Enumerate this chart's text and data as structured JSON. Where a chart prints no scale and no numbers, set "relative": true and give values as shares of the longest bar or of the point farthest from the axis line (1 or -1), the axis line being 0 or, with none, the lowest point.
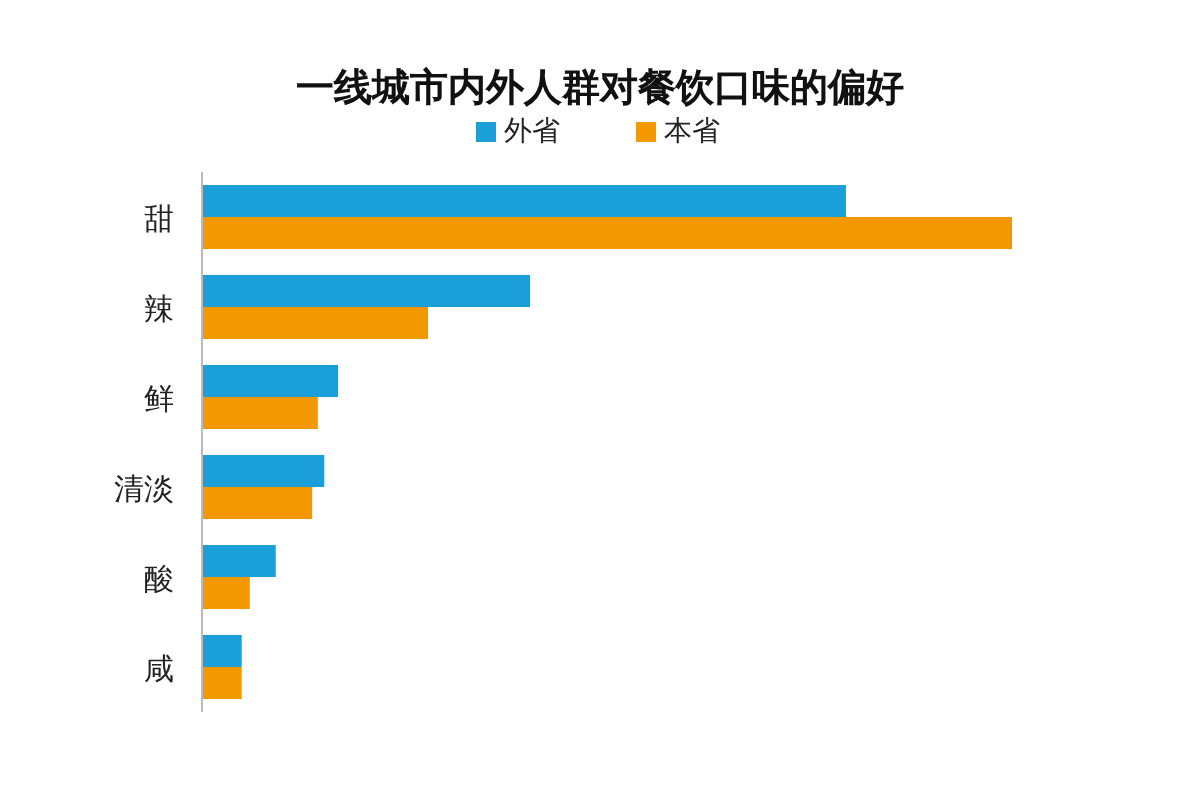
{
  "chart_data": {
    "type": "bar",
    "orientation": "horizontal",
    "relative": true,
    "title": "一线城市内外人群对餐饮口味的偏好",
    "legend": "top",
    "categories": [
      "甜",
      "辣",
      "鲜",
      "清淡",
      "酸",
      "咸"
    ],
    "series": [
      {
        "name": "外省",
        "color": "#1a9fd8",
        "values": [
          0.795,
          0.405,
          0.168,
          0.151,
          0.091,
          0.049
        ]
      },
      {
        "name": "本省",
        "color": "#f39800",
        "values": [
          1,
          0.279,
          0.143,
          0.136,
          0.059,
          0.049
        ]
      }
    ]
  }
}
